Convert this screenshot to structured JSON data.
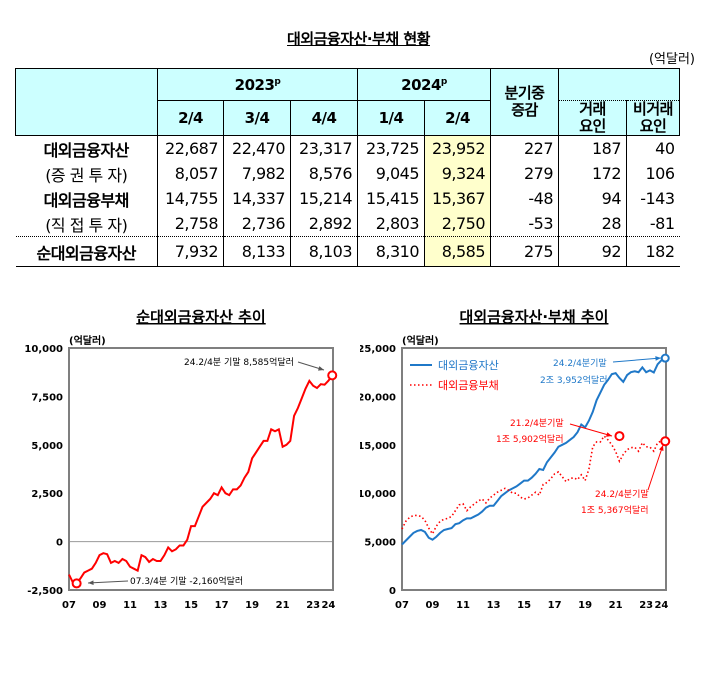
{
  "table": {
    "title": "대외금융자산·부채 현황",
    "unit": "(억달러)",
    "year_headers": [
      {
        "year": "2023",
        "sup": "p"
      },
      {
        "year": "2024",
        "sup": "p"
      }
    ],
    "quarters": [
      "2/4",
      "3/4",
      "4/4",
      "1/4",
      "2/4"
    ],
    "change_header": [
      "분기중",
      "증감"
    ],
    "txn_header": [
      "거래",
      "요인"
    ],
    "nontxn_header": [
      "비거래",
      "요인"
    ],
    "rows": [
      {
        "label": "대외금융자산",
        "values": [
          "22,687",
          "22,470",
          "23,317",
          "23,725",
          "23,952",
          "227",
          "187",
          "40"
        ]
      },
      {
        "label": "(증 권 투 자)",
        "values": [
          "8,057",
          "7,982",
          "8,576",
          "9,045",
          "9,324",
          "279",
          "172",
          "106"
        ]
      },
      {
        "label": "대외금융부채",
        "values": [
          "14,755",
          "14,337",
          "15,214",
          "15,415",
          "15,367",
          "-48",
          "94",
          "-143"
        ]
      },
      {
        "label": "(직 접 투 자)",
        "values": [
          "2,758",
          "2,736",
          "2,892",
          "2,803",
          "2,750",
          "-53",
          "28",
          "-81"
        ]
      },
      {
        "label": "순대외금융자산",
        "values": [
          "7,932",
          "8,133",
          "8,103",
          "8,310",
          "8,585",
          "275",
          "92",
          "182"
        ]
      }
    ],
    "highlight_color": "#ffffcc",
    "header_color": "#ccffff"
  },
  "chart_data": [
    {
      "type": "line",
      "title": "순대외금융자산 추이",
      "ylabel": "(억달러)",
      "ylim": [
        -2500,
        10000
      ],
      "yticks": [
        "10,000",
        "7,500",
        "5,000",
        "2,500",
        "0",
        "-2,500"
      ],
      "ytick_values": [
        10000,
        7500,
        5000,
        2500,
        0,
        -2500
      ],
      "xticks": [
        "07",
        "09",
        "11",
        "13",
        "15",
        "17",
        "19",
        "21",
        "23",
        "24"
      ],
      "xtick_values": [
        2007,
        2009,
        2011,
        2013,
        2015,
        2017,
        2019,
        2021,
        2023,
        2024
      ],
      "x_start": "2007Q1",
      "frequency": "quarterly",
      "zero_line": true,
      "series": [
        {
          "color": "#ff0000",
          "values": [
            -1700,
            -2100,
            -2160,
            -1900,
            -1600,
            -1500,
            -1400,
            -1100,
            -700,
            -600,
            -650,
            -1100,
            -1000,
            -1100,
            -900,
            -1000,
            -1300,
            -1400,
            -1500,
            -700,
            -800,
            -1050,
            -900,
            -1000,
            -1000,
            -700,
            -300,
            -500,
            -400,
            -200,
            -200,
            100,
            800,
            800,
            1300,
            1800,
            2000,
            2200,
            2500,
            2400,
            2800,
            2500,
            2400,
            2700,
            2700,
            2900,
            3300,
            3600,
            4300,
            4600,
            4900,
            5200,
            5200,
            5800,
            5700,
            5800,
            4900,
            5000,
            5200,
            6500,
            6900,
            7400,
            7900,
            8300,
            8050,
            7932,
            8133,
            8103,
            8310,
            8585
          ]
        }
      ],
      "annotations": [
        {
          "text": "24.2/4분 기말  8,585억달러"
        },
        {
          "text": "07.3/4분 기말  -2,160억달러"
        }
      ]
    },
    {
      "type": "line",
      "title": "대외금융자산·부채 추이",
      "ylabel": "(억달러)",
      "ylim": [
        0,
        25000
      ],
      "yticks": [
        "25,000",
        "20,000",
        "15,000",
        "10,000",
        "5,000",
        "0"
      ],
      "ytick_values": [
        25000,
        20000,
        15000,
        10000,
        5000,
        0
      ],
      "xticks": [
        "07",
        "09",
        "11",
        "13",
        "15",
        "17",
        "19",
        "21",
        "23",
        "24"
      ],
      "xtick_values": [
        2007,
        2009,
        2011,
        2013,
        2015,
        2017,
        2019,
        2021,
        2023,
        2024
      ],
      "x_start": "2007Q1",
      "frequency": "quarterly",
      "legend": "top-left",
      "series": [
        {
          "name": "대외금융자산",
          "color": "#1f78c8",
          "style": "solid",
          "values": [
            4700,
            5100,
            5500,
            5900,
            6100,
            6200,
            6000,
            5400,
            5200,
            5500,
            5900,
            6200,
            6300,
            6400,
            6800,
            6900,
            7200,
            7400,
            7400,
            7600,
            7800,
            8100,
            8500,
            8700,
            8700,
            9200,
            9700,
            10000,
            10300,
            10500,
            10700,
            11000,
            11300,
            11300,
            11600,
            12000,
            12500,
            12400,
            13200,
            13700,
            14200,
            14800,
            15000,
            15200,
            15500,
            15800,
            16300,
            17100,
            16800,
            17500,
            18400,
            19600,
            20400,
            21200,
            21700,
            22300,
            22400,
            21900,
            21500,
            22200,
            22500,
            22600,
            22500,
            23000,
            22500,
            22687,
            22470,
            23317,
            23725,
            23952
          ]
        },
        {
          "name": "대외금융부채",
          "color": "#ff0000",
          "style": "dotted",
          "values": [
            6300,
            7100,
            7500,
            7700,
            7700,
            7600,
            7200,
            6400,
            5800,
            6600,
            7100,
            7300,
            7400,
            7600,
            8200,
            8800,
            8900,
            8200,
            8600,
            8900,
            9200,
            9400,
            9000,
            9500,
            9800,
            10100,
            10300,
            10500,
            10300,
            10000,
            10000,
            9600,
            9400,
            9500,
            9800,
            10100,
            9800,
            10900,
            11100,
            11500,
            12000,
            12200,
            11700,
            11200,
            11500,
            11600,
            11400,
            11900,
            11300,
            12500,
            14800,
            15300,
            15300,
            15902,
            15500,
            15000,
            14300,
            13300,
            14000,
            14500,
            14700,
            14755,
            14337,
            15214,
            14800,
            14755,
            14337,
            15214,
            15415,
            15367
          ]
        }
      ],
      "annotations": [
        {
          "line1": "24.2/4분기말",
          "line2": "2조 3,952억달러"
        },
        {
          "line1": "21.2/4분기말",
          "line2": "1조 5,902억달러"
        },
        {
          "line1": "24.2/4분기말",
          "line2": "1조 5,367억달러"
        }
      ]
    }
  ]
}
